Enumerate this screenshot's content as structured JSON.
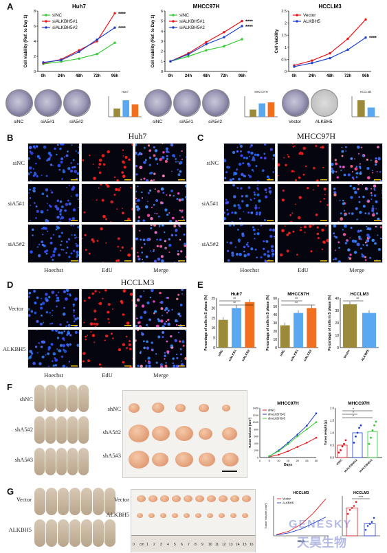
{
  "colors": {
    "green": "#33cc33",
    "red": "#e8151b",
    "blue": "#1f3fcf",
    "olive": "#9a8a3a",
    "skyblue": "#5aa9f0",
    "orange": "#f07020",
    "tumor": "#e8a07a"
  },
  "panels": {
    "A": "A",
    "B": "B",
    "C": "C",
    "D": "D",
    "E": "E",
    "F": "F",
    "G": "G"
  },
  "panelA": {
    "charts": [
      {
        "title": "Huh7",
        "ylabel": "Cell viability (Ref. to Day 1)",
        "type": "line",
        "x": [
          "0h",
          "24h",
          "48h",
          "72h",
          "96h"
        ],
        "yticks": [
          0,
          2,
          4,
          6,
          8
        ],
        "ylim": [
          0,
          8
        ],
        "series": [
          {
            "name": "siNC",
            "color": "#33cc33",
            "values": [
              1.0,
              1.3,
              1.7,
              2.3,
              3.8
            ]
          },
          {
            "name": "siALKBH5#1",
            "color": "#e8151b",
            "values": [
              1.1,
              1.6,
              2.8,
              4.0,
              7.7
            ]
          },
          {
            "name": "siALKBH5#2",
            "color": "#1f3fcf",
            "values": [
              1.2,
              1.5,
              2.6,
              4.2,
              5.8
            ]
          }
        ],
        "sig": [
          "****",
          "****"
        ]
      },
      {
        "title": "MHCC97H",
        "ylabel": "Cell viability (Ref. to Day 1)",
        "type": "line",
        "x": [
          "0h",
          "24h",
          "48h",
          "72h",
          "96h"
        ],
        "yticks": [
          0,
          1,
          2,
          3,
          4,
          5,
          6
        ],
        "ylim": [
          0,
          6
        ],
        "series": [
          {
            "name": "siNC",
            "color": "#33cc33",
            "values": [
              1.0,
              1.5,
              2.1,
              2.5,
              3.2
            ]
          },
          {
            "name": "siALKBH5#1",
            "color": "#e8151b",
            "values": [
              1.0,
              1.8,
              2.9,
              3.9,
              5.0
            ]
          },
          {
            "name": "siALKBH5#2",
            "color": "#1f3fcf",
            "values": [
              1.0,
              1.7,
              2.7,
              3.4,
              4.5
            ]
          }
        ],
        "sig": [
          "****",
          "****"
        ]
      },
      {
        "title": "HCCLM3",
        "ylabel": "Cell viability",
        "type": "line",
        "x": [
          "0h",
          "24h",
          "48h",
          "72h",
          "96h"
        ],
        "yticks": [
          0.0,
          0.5,
          1.0,
          1.5,
          2.0,
          2.5
        ],
        "ylim": [
          0,
          2.5
        ],
        "series": [
          {
            "name": "Vector",
            "color": "#e8151b",
            "values": [
              0.25,
              0.45,
              0.75,
              1.35,
              2.15
            ]
          },
          {
            "name": "ALKBH5",
            "color": "#1f3fcf",
            "values": [
              0.2,
              0.35,
              0.55,
              0.9,
              1.4
            ]
          }
        ],
        "sig": [
          "****"
        ]
      }
    ],
    "colony_groups": [
      {
        "labels": [
          "siNC",
          "siA5#1",
          "siA5#2"
        ]
      },
      {
        "labels": [
          "siNC",
          "siA5#1",
          "siA5#2"
        ]
      },
      {
        "labels": [
          "Vector",
          "ALKBH5"
        ]
      }
    ],
    "mini_bars": [
      {
        "title": "Huh7",
        "values": [
          0.8,
          1.6,
          1.2
        ],
        "colors": [
          "#9a8a3a",
          "#5aa9f0",
          "#f07020"
        ]
      },
      {
        "title": "MHCC97H",
        "values": [
          0.7,
          1.3,
          1.4
        ],
        "colors": [
          "#9a8a3a",
          "#5aa9f0",
          "#f07020"
        ]
      },
      {
        "title": "HCCLM3",
        "values": [
          1.6,
          0.9
        ],
        "colors": [
          "#9a8a3a",
          "#5aa9f0"
        ]
      }
    ]
  },
  "panelB": {
    "title": "Huh7",
    "rows": [
      "siNC",
      "siA5#1",
      "siA5#2"
    ],
    "cols": [
      "Hoechst",
      "EdU",
      "Merge"
    ]
  },
  "panelC": {
    "title": "MHCC97H",
    "rows": [
      "siNC",
      "siA5#1",
      "siA5#2"
    ],
    "cols": [
      "Hoechst",
      "EdU",
      "Merge"
    ]
  },
  "panelD": {
    "title": "HCCLM3",
    "rows": [
      "Vector",
      "ALKBH5"
    ],
    "cols": [
      "Hoechst",
      "EdU",
      "Merge"
    ]
  },
  "panelE": {
    "chart_data": [
      {
        "type": "bar",
        "title": "Huh7",
        "ylabel": "Percentage of cells in S phase (%)",
        "categories": [
          "siNC",
          "siALKB1",
          "siALKB2"
        ],
        "values": [
          14,
          20,
          23
        ],
        "ylim": [
          0,
          25
        ],
        "yticks": [
          0,
          5,
          10,
          15,
          20,
          25
        ],
        "sig": [
          "**",
          "**"
        ]
      },
      {
        "type": "bar",
        "title": "MHCC97H",
        "ylabel": "Percentage of cells in S phase (%)",
        "categories": [
          "siNC",
          "siALKB1",
          "siALKB2"
        ],
        "values": [
          27,
          42,
          48
        ],
        "ylim": [
          0,
          60
        ],
        "yticks": [
          0,
          10,
          20,
          30,
          40,
          50,
          60
        ],
        "sig": [
          "**",
          "**"
        ]
      },
      {
        "type": "bar",
        "title": "HCCLM3",
        "ylabel": "Percentage of cells in S phase (%)",
        "categories": [
          "Vector",
          "ALKBH5"
        ],
        "values": [
          35,
          28
        ],
        "ylim": [
          0,
          40
        ],
        "yticks": [
          0,
          10,
          20,
          30,
          40
        ],
        "sig": [
          "**"
        ]
      }
    ]
  },
  "panelF": {
    "mouse_labels": [
      "shNC",
      "shA5#2",
      "shA5#3"
    ],
    "tumor_labels": [
      "shNC",
      "shA5#2",
      "shA5#3"
    ],
    "line_chart": {
      "title": "MHCC97H",
      "ylabel": "Tumor Volume (mm³)",
      "xlabel": "Days",
      "legend": [
        "shNC",
        "shALKBH5#2",
        "shALKBH5#3"
      ],
      "x": [
        5,
        10,
        15,
        20,
        25,
        30
      ],
      "yticks": [
        0,
        200,
        400,
        600,
        800,
        1000,
        1200,
        1400
      ],
      "xticks": [
        0,
        5,
        10,
        15,
        20,
        25,
        30
      ],
      "series": [
        {
          "name": "shNC",
          "color": "#e8151b",
          "values": [
            20,
            80,
            180,
            300,
            420,
            560
          ]
        },
        {
          "name": "shALKBH5#2",
          "color": "#1f3fcf",
          "values": [
            30,
            200,
            420,
            650,
            900,
            1250
          ]
        },
        {
          "name": "shALKBH5#3",
          "color": "#33cc33",
          "values": [
            40,
            180,
            380,
            600,
            800,
            1000
          ]
        }
      ]
    },
    "dot_chart": {
      "title": "MHCC97H",
      "ylabel": "Tumor weight (g)",
      "categories": [
        "shNC",
        "shALKBH5#2",
        "shALKBH5#3"
      ],
      "yticks": [
        0.0,
        0.5,
        1.0,
        1.5,
        2.0
      ],
      "means": [
        0.5,
        1.0,
        1.05
      ],
      "colors": [
        "#e8151b",
        "#1f3fcf",
        "#33cc33"
      ],
      "points": [
        [
          0.2,
          0.3,
          0.45,
          0.55,
          0.7
        ],
        [
          0.6,
          0.85,
          1.0,
          1.2,
          1.3
        ],
        [
          0.55,
          0.8,
          1.1,
          1.3,
          1.45
        ]
      ],
      "sig": [
        "*",
        "*",
        "*"
      ]
    }
  },
  "panelG": {
    "mouse_labels": [
      "Vector",
      "ALKBH5"
    ],
    "tumor_labels": [
      "Vector",
      "ALKBH5"
    ],
    "ruler_ticks": [
      "0",
      "cm",
      "1",
      "2",
      "3",
      "4",
      "5",
      "6",
      "7",
      "8",
      "9",
      "10",
      "11",
      "12",
      "13",
      "14",
      "15",
      "16"
    ],
    "line_chart": {
      "title": "HCCLM3",
      "ylabel": "Tumor Volume (mm³)",
      "xlabel": "Days",
      "legend": [
        "Vector",
        "ALKBH5"
      ],
      "series": [
        {
          "name": "Vector",
          "color": "#e8151b",
          "values": [
            20,
            80,
            200,
            400,
            650
          ]
        },
        {
          "name": "ALKBH5",
          "color": "#1f3fcf",
          "values": [
            15,
            50,
            120,
            220,
            330
          ]
        }
      ]
    },
    "dot_chart": {
      "title": "HCCLM3",
      "means": [
        0.7,
        0.3
      ],
      "colors": [
        "#e8151b",
        "#1f3fcf"
      ],
      "points": [
        [
          0.55,
          0.65,
          0.7,
          0.75,
          0.85
        ],
        [
          0.15,
          0.25,
          0.3,
          0.35,
          0.45
        ]
      ],
      "sig": [
        "****"
      ]
    }
  },
  "watermark": {
    "en": "GENESKY",
    "cn": "天昊生物"
  }
}
